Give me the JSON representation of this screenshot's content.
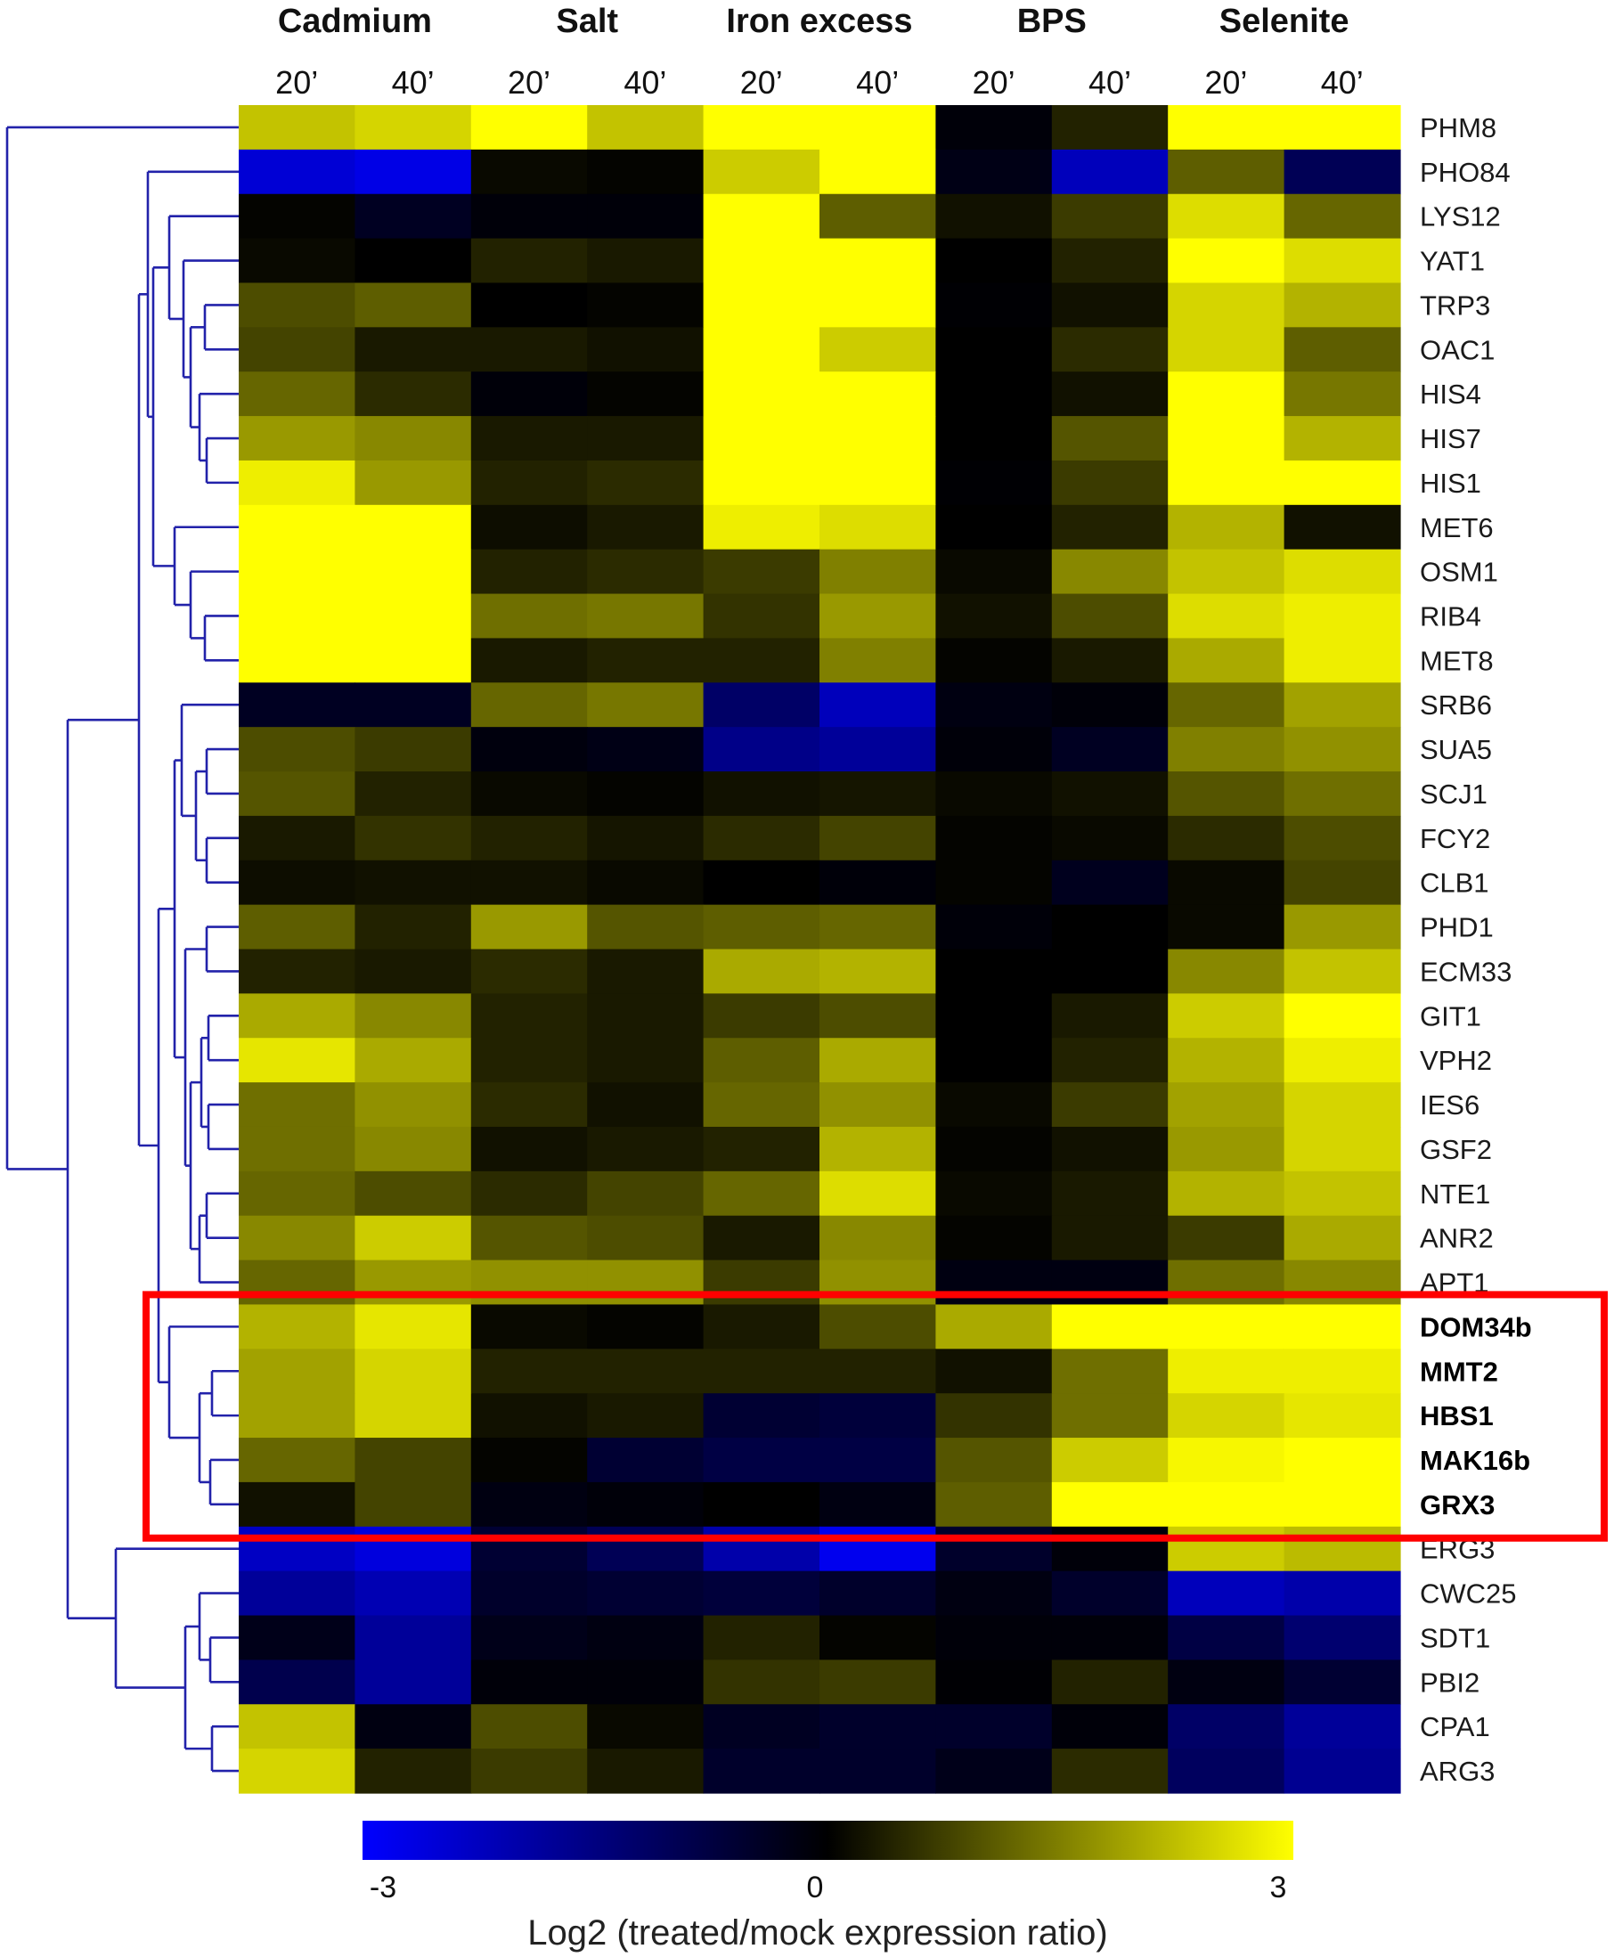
{
  "chart_data": {
    "type": "heatmap",
    "conditions": [
      "Cadmium",
      "Salt",
      "Iron excess",
      "BPS",
      "Selenite"
    ],
    "timepoints": [
      "20’",
      "40’",
      "20’",
      "40’",
      "20’",
      "40’",
      "20’",
      "40’",
      "20’",
      "40’"
    ],
    "genes": [
      "PHM8",
      "PHO84",
      "LYS12",
      "YAT1",
      "TRP3",
      "OAC1",
      "HIS4",
      "HIS7",
      "HIS1",
      "MET6",
      "OSM1",
      "RIB4",
      "MET8",
      "SRB6",
      "SUA5",
      "SCJ1",
      "FCY2",
      "CLB1",
      "PHD1",
      "ECM33",
      "GIT1",
      "VPH2",
      "IES6",
      "GSF2",
      "NTE1",
      "ANR2",
      "APT1",
      "DOM34b",
      "MMT2",
      "HBS1",
      "MAK16b",
      "GRX3",
      "ERG3",
      "CWC25",
      "SDT1",
      "PBI2",
      "CPA1",
      "ARG3"
    ],
    "bold_genes": [
      "DOM34b",
      "MMT2",
      "HBS1",
      "MAK16b",
      "GRX3"
    ],
    "highlight_box": {
      "first_gene": "DOM34b",
      "last_gene": "GRX3",
      "color": "#ff0000"
    },
    "values": [
      [
        2.3,
        2.5,
        3,
        2.3,
        3,
        3,
        -0.1,
        0.4,
        3,
        3
      ],
      [
        -2.5,
        -2.7,
        0.1,
        0.05,
        2.4,
        3,
        -0.25,
        -2.2,
        1.1,
        -1
      ],
      [
        0.05,
        -0.4,
        -0.1,
        -0.1,
        3,
        1.1,
        0.2,
        0.7,
        2.6,
        1.2
      ],
      [
        0.1,
        0,
        0.4,
        0.3,
        3,
        3,
        0,
        0.4,
        3,
        2.6
      ],
      [
        0.9,
        1.1,
        0,
        0.05,
        3,
        3,
        -0.05,
        0.2,
        2.5,
        2.1
      ],
      [
        0.8,
        0.3,
        0.3,
        0.2,
        3,
        2.4,
        0,
        0.5,
        2.5,
        1.1
      ],
      [
        1.2,
        0.5,
        -0.1,
        0.05,
        3,
        3,
        0,
        0.2,
        3,
        1.4
      ],
      [
        1.8,
        1.6,
        0.3,
        0.3,
        3,
        3,
        0,
        1,
        3,
        2.1
      ],
      [
        2.8,
        1.8,
        0.4,
        0.5,
        3,
        3,
        -0.05,
        0.7,
        3,
        3
      ],
      [
        3,
        3,
        0.15,
        0.3,
        2.8,
        2.6,
        0,
        0.4,
        2.1,
        0.2
      ],
      [
        3,
        3,
        0.4,
        0.5,
        0.7,
        1.5,
        0.1,
        1.6,
        2.3,
        2.6
      ],
      [
        3,
        3,
        1.3,
        1.4,
        0.6,
        1.8,
        0.2,
        0.9,
        2.6,
        2.8
      ],
      [
        3,
        3,
        0.3,
        0.4,
        0.4,
        1.5,
        0.05,
        0.3,
        2,
        2.8
      ],
      [
        -0.4,
        -0.4,
        1.2,
        1.4,
        -1.2,
        -2.2,
        -0.2,
        -0.1,
        1.2,
        1.9
      ],
      [
        0.9,
        0.7,
        -0.15,
        -0.25,
        -1.6,
        -1.8,
        -0.1,
        -0.4,
        1.5,
        1.7
      ],
      [
        1,
        0.4,
        0.1,
        0.05,
        0.2,
        0.25,
        0.1,
        0.2,
        1,
        1.3
      ],
      [
        0.3,
        0.6,
        0.4,
        0.25,
        0.5,
        0.8,
        0.05,
        0.1,
        0.5,
        0.9
      ],
      [
        0.15,
        0.2,
        0.2,
        0.1,
        0,
        -0.1,
        0.05,
        -0.35,
        0.1,
        0.8
      ],
      [
        1.1,
        0.4,
        1.8,
        1,
        1.1,
        1.2,
        -0.1,
        0,
        0.1,
        1.8
      ],
      [
        0.4,
        0.3,
        0.5,
        0.3,
        2,
        2.1,
        0,
        0,
        1.6,
        2.3
      ],
      [
        2,
        1.6,
        0.4,
        0.3,
        0.7,
        0.9,
        0,
        0.3,
        2.4,
        3
      ],
      [
        2.7,
        2,
        0.4,
        0.3,
        1.1,
        2,
        0,
        0.4,
        2.1,
        2.8
      ],
      [
        1.3,
        1.7,
        0.5,
        0.2,
        1.2,
        1.7,
        0.1,
        0.7,
        1.9,
        2.5
      ],
      [
        1.3,
        1.6,
        0.2,
        0.3,
        0.4,
        2.1,
        0.05,
        0.2,
        1.8,
        2.5
      ],
      [
        1.2,
        0.9,
        0.5,
        0.8,
        1.2,
        2.6,
        0.1,
        0.3,
        2.1,
        2.3
      ],
      [
        1.6,
        2.4,
        1,
        0.9,
        0.3,
        1.6,
        0.05,
        0.3,
        0.7,
        2
      ],
      [
        1.2,
        1.8,
        1.7,
        1.7,
        0.7,
        1.7,
        -0.2,
        -0.2,
        1.3,
        1.6
      ],
      [
        2.1,
        2.7,
        0.1,
        0.05,
        0.3,
        0.9,
        2,
        3,
        3,
        3
      ],
      [
        1.9,
        2.5,
        0.4,
        0.4,
        0.4,
        0.4,
        0.2,
        1.3,
        2.8,
        2.8
      ],
      [
        1.9,
        2.5,
        0.2,
        0.3,
        -0.6,
        -0.7,
        0.6,
        1.3,
        2.5,
        2.7
      ],
      [
        1.2,
        0.8,
        0.05,
        -0.6,
        -0.8,
        -0.8,
        1,
        2.4,
        2.9,
        3
      ],
      [
        0.2,
        0.8,
        -0.2,
        -0.1,
        0,
        -0.2,
        1.1,
        3,
        3,
        3
      ],
      [
        -2.3,
        -2.6,
        -0.6,
        -1,
        -2,
        -2.8,
        -0.5,
        -0.1,
        2.4,
        2.2
      ],
      [
        -1.8,
        -2.1,
        -0.5,
        -0.6,
        -0.7,
        -0.5,
        -0.2,
        -0.5,
        -2.2,
        -2
      ],
      [
        -0.3,
        -1.8,
        -0.3,
        -0.2,
        0.4,
        0.05,
        -0.1,
        -0.1,
        -0.8,
        -1.3
      ],
      [
        -0.9,
        -1.8,
        -0.1,
        -0.1,
        0.6,
        0.7,
        -0.05,
        0.4,
        -0.2,
        -0.6
      ],
      [
        2.3,
        -0.2,
        0.9,
        0.1,
        -0.4,
        -0.5,
        -0.5,
        -0.1,
        -1.2,
        -1.8
      ],
      [
        2.5,
        0.4,
        0.7,
        0.3,
        -0.5,
        -0.5,
        -0.3,
        0.5,
        -1.1,
        -1.7
      ]
    ],
    "colorbar": {
      "min": -3,
      "max": 3,
      "ticks": [
        "-3",
        "0",
        "3"
      ],
      "low_color": "#0000ff",
      "mid_color": "#000000",
      "high_color": "#ffff00",
      "label": "Log2 (treated/mock expression ratio)"
    },
    "dendrogram_color": "#2222aa"
  }
}
